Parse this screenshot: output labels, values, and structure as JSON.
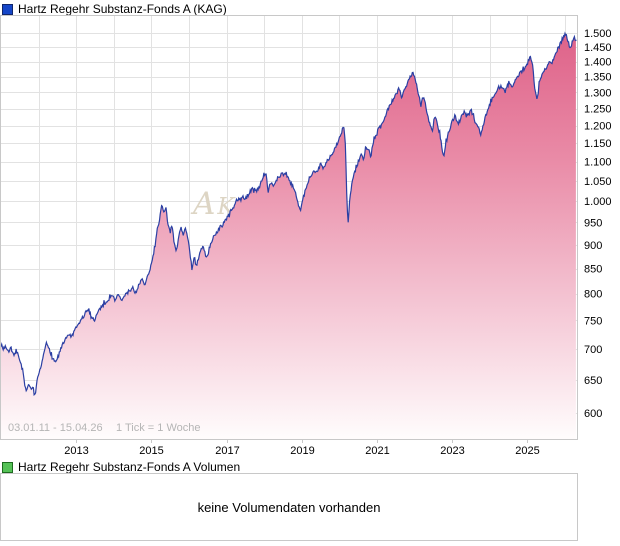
{
  "main_chart": {
    "legend": {
      "label": "Hartz Regehr Substanz-Fonds A (KAG)",
      "marker_color": "#1546c8"
    },
    "footer": {
      "period": "03.01.11 - 15.04.26",
      "tick_info": "1 Tick = 1 Woche"
    },
    "watermark": "AK",
    "y_axis": {
      "tick_values": [
        1500,
        1450,
        1400,
        1350,
        1300,
        1250,
        1200,
        1150,
        1100,
        1050,
        1000,
        950,
        900,
        850,
        800,
        750,
        700,
        650,
        600
      ],
      "tick_labels": [
        "1.500",
        "1.450",
        "1.400",
        "1.350",
        "1.300",
        "1.250",
        "1.200",
        "1.150",
        "1.100",
        "1.050",
        "1.000",
        "950",
        "900",
        "850",
        "800",
        "750",
        "700",
        "650",
        "600"
      ]
    },
    "x_axis": {
      "label_years": [
        2013,
        2015,
        2017,
        2019,
        2021,
        2023,
        2025
      ],
      "labels": [
        "2013",
        "2015",
        "2017",
        "2019",
        "2021",
        "2023",
        "2025"
      ]
    }
  },
  "chart_data": {
    "type": "area",
    "title": "Hartz Regehr Substanz-Fonds A (KAG)",
    "xlabel": "",
    "ylabel": "",
    "x_range": [
      2011.0,
      2026.29
    ],
    "ylim": [
      600,
      1520
    ],
    "y_scale": "log",
    "grid": true,
    "legend_position": "top-left",
    "line_color": "#2b3fa3",
    "fill_gradient": [
      "#dd5d85",
      "#e98aa6",
      "#f4c3d2",
      "#fffdfd"
    ],
    "grid_color": "#e2e2e2",
    "frame_color": "#c8c8c8",
    "noise_pct": 0.45,
    "series": [
      {
        "name": "Hartz Regehr Substanz-Fonds A (KAG)",
        "points": [
          [
            2011.0,
            710
          ],
          [
            2011.06,
            700
          ],
          [
            2011.12,
            706
          ],
          [
            2011.18,
            694
          ],
          [
            2011.25,
            701
          ],
          [
            2011.32,
            690
          ],
          [
            2011.4,
            697
          ],
          [
            2011.5,
            683
          ],
          [
            2011.58,
            664
          ],
          [
            2011.63,
            641
          ],
          [
            2011.68,
            629
          ],
          [
            2011.73,
            646
          ],
          [
            2011.8,
            633
          ],
          [
            2011.86,
            640
          ],
          [
            2011.9,
            626
          ],
          [
            2011.97,
            650
          ],
          [
            2012.05,
            667
          ],
          [
            2012.13,
            688
          ],
          [
            2012.2,
            710
          ],
          [
            2012.28,
            702
          ],
          [
            2012.36,
            686
          ],
          [
            2012.45,
            678
          ],
          [
            2012.55,
            693
          ],
          [
            2012.63,
            706
          ],
          [
            2012.72,
            716
          ],
          [
            2012.8,
            726
          ],
          [
            2012.88,
            720
          ],
          [
            2012.95,
            730
          ],
          [
            2013.05,
            742
          ],
          [
            2013.15,
            753
          ],
          [
            2013.25,
            764
          ],
          [
            2013.33,
            770
          ],
          [
            2013.4,
            759
          ],
          [
            2013.48,
            750
          ],
          [
            2013.56,
            763
          ],
          [
            2013.65,
            774
          ],
          [
            2013.75,
            781
          ],
          [
            2013.85,
            789
          ],
          [
            2013.95,
            796
          ],
          [
            2014.03,
            789
          ],
          [
            2014.12,
            797
          ],
          [
            2014.22,
            787
          ],
          [
            2014.32,
            799
          ],
          [
            2014.42,
            806
          ],
          [
            2014.5,
            812
          ],
          [
            2014.58,
            801
          ],
          [
            2014.67,
            817
          ],
          [
            2014.75,
            829
          ],
          [
            2014.82,
            814
          ],
          [
            2014.9,
            834
          ],
          [
            2014.97,
            852
          ],
          [
            2015.05,
            878
          ],
          [
            2015.12,
            912
          ],
          [
            2015.2,
            948
          ],
          [
            2015.28,
            995
          ],
          [
            2015.33,
            972
          ],
          [
            2015.38,
            986
          ],
          [
            2015.44,
            948
          ],
          [
            2015.5,
            929
          ],
          [
            2015.55,
            946
          ],
          [
            2015.6,
            903
          ],
          [
            2015.66,
            884
          ],
          [
            2015.72,
            912
          ],
          [
            2015.78,
            941
          ],
          [
            2015.84,
            923
          ],
          [
            2015.9,
            936
          ],
          [
            2015.96,
            916
          ],
          [
            2016.02,
            886
          ],
          [
            2016.08,
            846
          ],
          [
            2016.14,
            872
          ],
          [
            2016.2,
            853
          ],
          [
            2016.28,
            882
          ],
          [
            2016.35,
            896
          ],
          [
            2016.42,
            884
          ],
          [
            2016.48,
            868
          ],
          [
            2016.55,
            897
          ],
          [
            2016.62,
            911
          ],
          [
            2016.7,
            924
          ],
          [
            2016.8,
            936
          ],
          [
            2016.9,
            946
          ],
          [
            2017.0,
            959
          ],
          [
            2017.1,
            974
          ],
          [
            2017.2,
            989
          ],
          [
            2017.3,
            1001
          ],
          [
            2017.4,
            1012
          ],
          [
            2017.5,
            1004
          ],
          [
            2017.6,
            1021
          ],
          [
            2017.7,
            1031
          ],
          [
            2017.8,
            1024
          ],
          [
            2017.9,
            1042
          ],
          [
            2018.0,
            1066
          ],
          [
            2018.05,
            1072
          ],
          [
            2018.1,
            1028
          ],
          [
            2018.17,
            1046
          ],
          [
            2018.25,
            1034
          ],
          [
            2018.33,
            1051
          ],
          [
            2018.42,
            1062
          ],
          [
            2018.5,
            1071
          ],
          [
            2018.58,
            1064
          ],
          [
            2018.67,
            1054
          ],
          [
            2018.75,
            1038
          ],
          [
            2018.83,
            1018
          ],
          [
            2018.92,
            989
          ],
          [
            2018.98,
            981
          ],
          [
            2019.05,
            1012
          ],
          [
            2019.15,
            1041
          ],
          [
            2019.25,
            1062
          ],
          [
            2019.33,
            1079
          ],
          [
            2019.4,
            1069
          ],
          [
            2019.5,
            1094
          ],
          [
            2019.58,
            1084
          ],
          [
            2019.66,
            1101
          ],
          [
            2019.75,
            1112
          ],
          [
            2019.85,
            1126
          ],
          [
            2019.95,
            1152
          ],
          [
            2020.04,
            1172
          ],
          [
            2020.11,
            1201
          ],
          [
            2020.16,
            1148
          ],
          [
            2020.2,
            1005
          ],
          [
            2020.23,
            944
          ],
          [
            2020.28,
            1008
          ],
          [
            2020.34,
            1048
          ],
          [
            2020.42,
            1076
          ],
          [
            2020.5,
            1099
          ],
          [
            2020.58,
            1121
          ],
          [
            2020.64,
            1104
          ],
          [
            2020.71,
            1141
          ],
          [
            2020.78,
            1129
          ],
          [
            2020.84,
            1114
          ],
          [
            2020.92,
            1158
          ],
          [
            2021.0,
            1181
          ],
          [
            2021.1,
            1202
          ],
          [
            2021.2,
            1221
          ],
          [
            2021.3,
            1251
          ],
          [
            2021.4,
            1272
          ],
          [
            2021.5,
            1291
          ],
          [
            2021.58,
            1312
          ],
          [
            2021.66,
            1284
          ],
          [
            2021.75,
            1318
          ],
          [
            2021.85,
            1343
          ],
          [
            2021.95,
            1361
          ],
          [
            2022.03,
            1338
          ],
          [
            2022.1,
            1299
          ],
          [
            2022.17,
            1263
          ],
          [
            2022.24,
            1291
          ],
          [
            2022.32,
            1243
          ],
          [
            2022.4,
            1206
          ],
          [
            2022.47,
            1184
          ],
          [
            2022.54,
            1231
          ],
          [
            2022.62,
            1199
          ],
          [
            2022.7,
            1158
          ],
          [
            2022.77,
            1109
          ],
          [
            2022.84,
            1159
          ],
          [
            2022.92,
            1186
          ],
          [
            2023.0,
            1211
          ],
          [
            2023.08,
            1229
          ],
          [
            2023.16,
            1204
          ],
          [
            2023.25,
            1226
          ],
          [
            2023.33,
            1241
          ],
          [
            2023.42,
            1229
          ],
          [
            2023.5,
            1246
          ],
          [
            2023.58,
            1221
          ],
          [
            2023.67,
            1199
          ],
          [
            2023.76,
            1177
          ],
          [
            2023.85,
            1211
          ],
          [
            2023.93,
            1242
          ],
          [
            2024.02,
            1266
          ],
          [
            2024.1,
            1291
          ],
          [
            2024.2,
            1311
          ],
          [
            2024.3,
            1321
          ],
          [
            2024.4,
            1301
          ],
          [
            2024.5,
            1331
          ],
          [
            2024.6,
            1316
          ],
          [
            2024.7,
            1346
          ],
          [
            2024.8,
            1361
          ],
          [
            2024.9,
            1373
          ],
          [
            2025.0,
            1391
          ],
          [
            2025.07,
            1419
          ],
          [
            2025.14,
            1388
          ],
          [
            2025.2,
            1308
          ],
          [
            2025.26,
            1272
          ],
          [
            2025.33,
            1341
          ],
          [
            2025.42,
            1366
          ],
          [
            2025.5,
            1381
          ],
          [
            2025.58,
            1401
          ],
          [
            2025.65,
            1389
          ],
          [
            2025.72,
            1421
          ],
          [
            2025.8,
            1441
          ],
          [
            2025.87,
            1459
          ],
          [
            2025.94,
            1481
          ],
          [
            2026.02,
            1506
          ],
          [
            2026.08,
            1469
          ],
          [
            2026.14,
            1441
          ],
          [
            2026.2,
            1476
          ],
          [
            2026.29,
            1471
          ]
        ]
      }
    ]
  },
  "volume_chart": {
    "legend": {
      "label": "Hartz Regehr Substanz-Fonds A Volumen",
      "marker_color": "#55c257"
    },
    "message": "keine Volumendaten vorhanden"
  }
}
